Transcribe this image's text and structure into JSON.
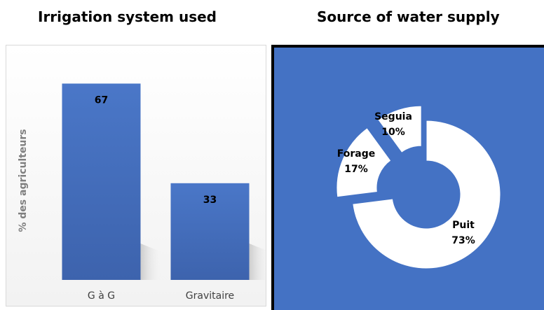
{
  "charts": {
    "left_title": "Irrigation system used",
    "right_title": "Source of water supply"
  },
  "chart_data": [
    {
      "type": "bar",
      "title": "Irrigation system used",
      "xlabel": "",
      "ylabel": "% des agriculteurs",
      "categories": [
        "G à G",
        "Gravitaire"
      ],
      "values": [
        67,
        33
      ],
      "data_labels": [
        "67",
        "33"
      ],
      "ylim": [
        0,
        80
      ],
      "grid": false,
      "colors": {
        "bar": "#4472c4",
        "label": "#000000"
      }
    },
    {
      "type": "pie",
      "style": "donut-exploded",
      "title": "Source of water supply",
      "categories": [
        "Puit",
        "Forage",
        "Seguia"
      ],
      "values": [
        73,
        17,
        10
      ],
      "value_labels": [
        "73%",
        "17%",
        "10%"
      ],
      "colors": {
        "background": "#4472c4",
        "slice": "#ffffff",
        "label": "#000000"
      }
    }
  ]
}
